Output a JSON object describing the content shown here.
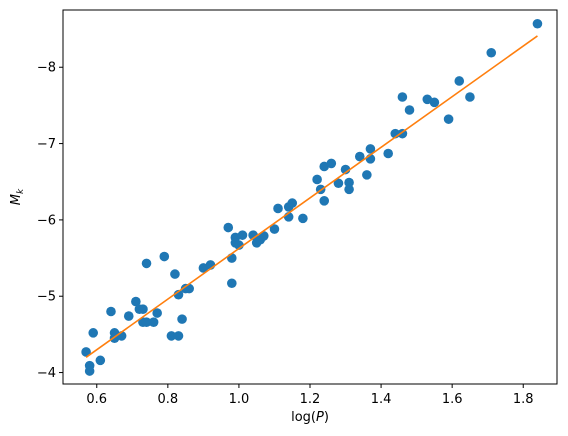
{
  "chart_data": {
    "type": "scatter",
    "xlabel": "log(P)",
    "ylabel": "M_k",
    "xlim": [
      0.505,
      1.895
    ],
    "ylim": [
      -3.85,
      -8.75
    ],
    "y_inverted": true,
    "grid": false,
    "x_ticks": [
      0.6,
      0.8,
      1.0,
      1.2,
      1.4,
      1.6,
      1.8
    ],
    "x_tick_labels": [
      "0.6",
      "0.8",
      "1.0",
      "1.2",
      "1.4",
      "1.6",
      "1.8"
    ],
    "y_ticks": [
      -4,
      -5,
      -6,
      -7,
      -8
    ],
    "y_tick_labels": [
      "−4",
      "−5",
      "−6",
      "−7",
      "−8"
    ],
    "series": [
      {
        "kind": "points",
        "color": "#1f77b4",
        "points": [
          [
            0.57,
            -4.27
          ],
          [
            0.58,
            -4.09
          ],
          [
            0.58,
            -4.02
          ],
          [
            0.59,
            -4.52
          ],
          [
            0.61,
            -4.16
          ],
          [
            0.64,
            -4.8
          ],
          [
            0.65,
            -4.52
          ],
          [
            0.65,
            -4.45
          ],
          [
            0.67,
            -4.48
          ],
          [
            0.69,
            -4.74
          ],
          [
            0.71,
            -4.93
          ],
          [
            0.72,
            -4.83
          ],
          [
            0.73,
            -4.83
          ],
          [
            0.73,
            -4.66
          ],
          [
            0.74,
            -5.43
          ],
          [
            0.74,
            -4.66
          ],
          [
            0.76,
            -4.66
          ],
          [
            0.77,
            -4.78
          ],
          [
            0.79,
            -5.52
          ],
          [
            0.81,
            -4.48
          ],
          [
            0.82,
            -5.29
          ],
          [
            0.83,
            -5.02
          ],
          [
            0.83,
            -4.48
          ],
          [
            0.84,
            -4.7
          ],
          [
            0.85,
            -5.1
          ],
          [
            0.86,
            -5.1
          ],
          [
            0.9,
            -5.37
          ],
          [
            0.92,
            -5.41
          ],
          [
            0.97,
            -5.9
          ],
          [
            0.98,
            -5.17
          ],
          [
            0.98,
            -5.5
          ],
          [
            0.99,
            -5.77
          ],
          [
            0.99,
            -5.7
          ],
          [
            1.0,
            -5.67
          ],
          [
            1.01,
            -5.8
          ],
          [
            1.04,
            -5.8
          ],
          [
            1.05,
            -5.7
          ],
          [
            1.06,
            -5.74
          ],
          [
            1.07,
            -5.79
          ],
          [
            1.1,
            -5.88
          ],
          [
            1.11,
            -6.15
          ],
          [
            1.14,
            -6.17
          ],
          [
            1.14,
            -6.04
          ],
          [
            1.15,
            -6.22
          ],
          [
            1.18,
            -6.02
          ],
          [
            1.22,
            -6.53
          ],
          [
            1.23,
            -6.4
          ],
          [
            1.24,
            -6.7
          ],
          [
            1.24,
            -6.25
          ],
          [
            1.26,
            -6.74
          ],
          [
            1.28,
            -6.48
          ],
          [
            1.3,
            -6.66
          ],
          [
            1.31,
            -6.49
          ],
          [
            1.31,
            -6.4
          ],
          [
            1.34,
            -6.83
          ],
          [
            1.36,
            -6.59
          ],
          [
            1.37,
            -6.8
          ],
          [
            1.37,
            -6.93
          ],
          [
            1.42,
            -6.87
          ],
          [
            1.44,
            -7.13
          ],
          [
            1.46,
            -7.13
          ],
          [
            1.46,
            -7.61
          ],
          [
            1.48,
            -7.44
          ],
          [
            1.53,
            -7.58
          ],
          [
            1.55,
            -7.54
          ],
          [
            1.59,
            -7.32
          ],
          [
            1.62,
            -7.82
          ],
          [
            1.65,
            -7.61
          ],
          [
            1.71,
            -8.19
          ],
          [
            1.84,
            -8.57
          ]
        ]
      },
      {
        "kind": "line",
        "color": "#ff7f0e",
        "points": [
          [
            0.57,
            -4.2
          ],
          [
            1.84,
            -8.41
          ]
        ]
      }
    ]
  }
}
